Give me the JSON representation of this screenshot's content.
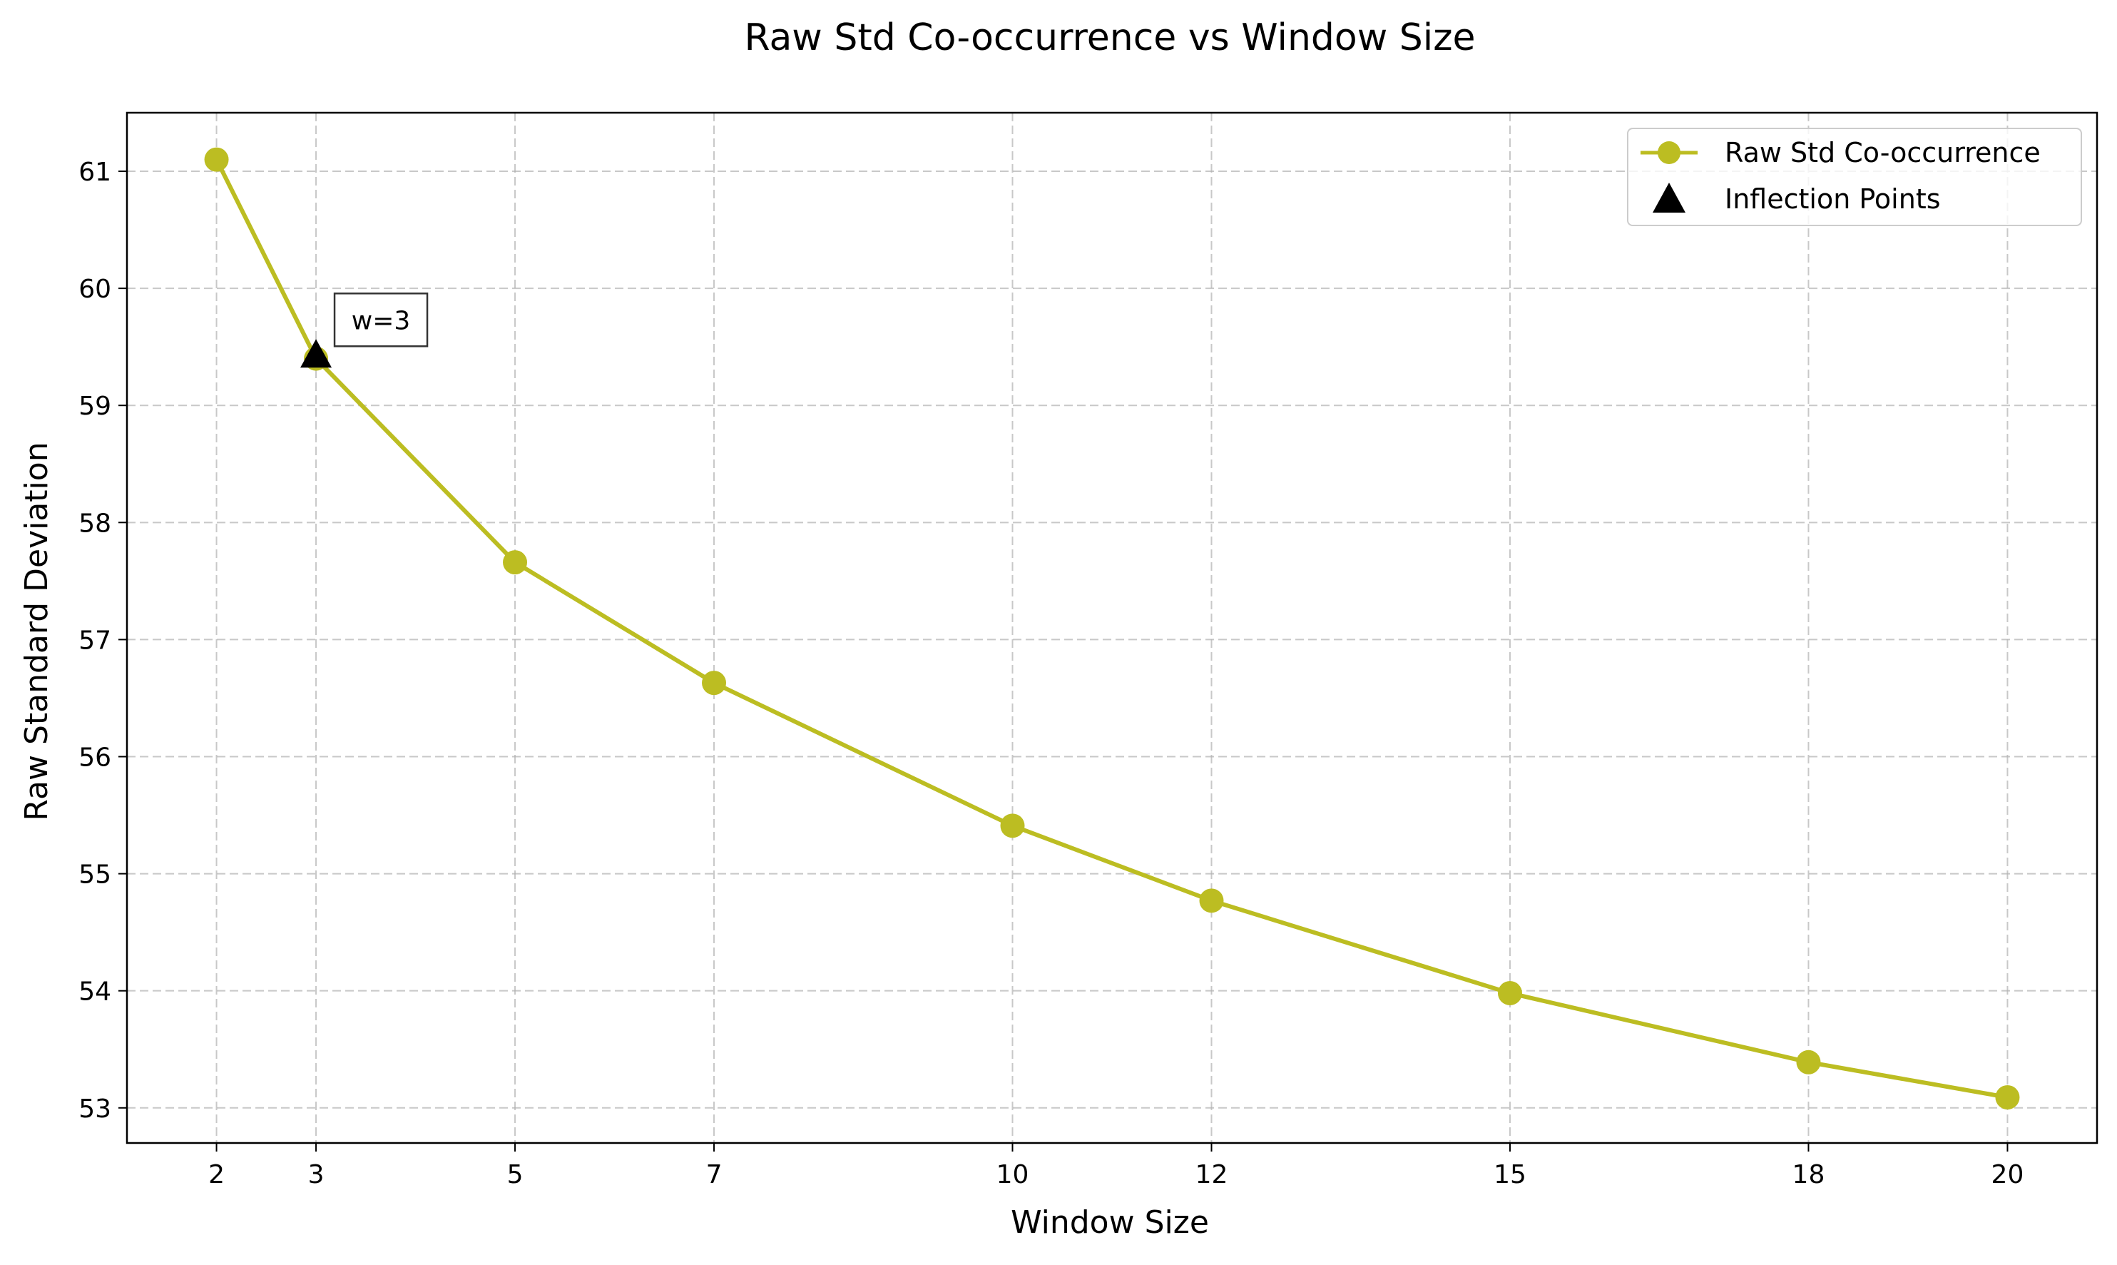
{
  "chart_data": {
    "type": "line",
    "title": "Raw Std Co-occurrence vs Window Size",
    "xlabel": "Window Size",
    "ylabel": "Raw Standard Deviation",
    "x": [
      2,
      3,
      5,
      7,
      10,
      12,
      15,
      18,
      20
    ],
    "x_tick_labels": [
      "2",
      "3",
      "5",
      "7",
      "10",
      "12",
      "15",
      "18",
      "20"
    ],
    "xlim": [
      1.1,
      20.9
    ],
    "ylim": [
      52.7,
      61.5
    ],
    "y_ticks": [
      53,
      54,
      55,
      56,
      57,
      58,
      59,
      60,
      61
    ],
    "y_tick_labels": [
      "53",
      "54",
      "55",
      "56",
      "57",
      "58",
      "59",
      "60",
      "61"
    ],
    "series": [
      {
        "name": "Raw Std Co-occurrence",
        "color": "#bcbd22",
        "marker": "circle",
        "values": [
          61.1,
          59.4,
          57.66,
          56.63,
          55.41,
          54.77,
          53.98,
          53.39,
          53.09
        ]
      }
    ],
    "inflection_points": {
      "name": "Inflection Points",
      "marker": "triangle",
      "color": "#000000",
      "points": [
        {
          "x": 3,
          "y": 59.42
        }
      ]
    },
    "annotations": [
      {
        "text": "w=3",
        "x": 3,
        "y": 59.42
      }
    ],
    "grid": true,
    "grid_style": "dashed",
    "legend_position": "top-right"
  }
}
